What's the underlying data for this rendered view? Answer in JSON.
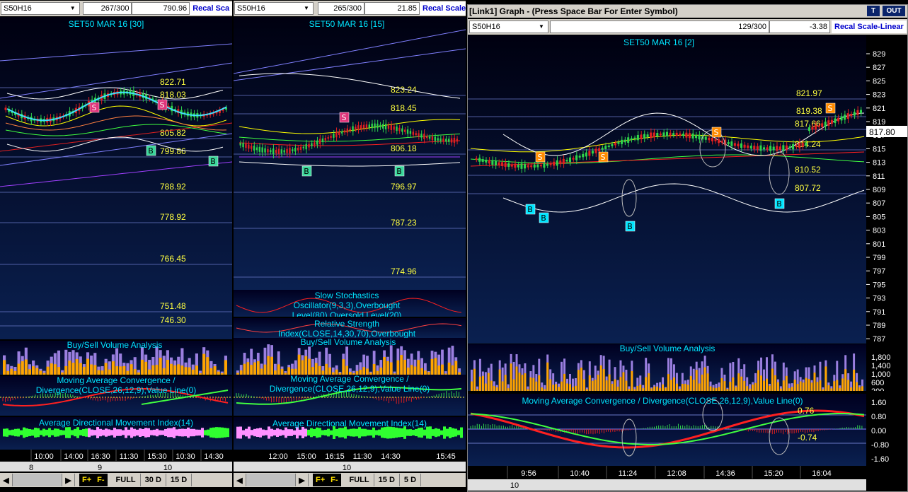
{
  "charts": [
    {
      "symbol": "S50H16",
      "count": "267/300",
      "value": "790.96",
      "recal": "Recal Sca",
      "title": "SET50 MAR 16  [30]",
      "hlines": [
        "822.71",
        "818.03",
        "805.82",
        "799.86",
        "788.92",
        "778.92",
        "766.45",
        "751.48",
        "746.30"
      ],
      "buy_sell": "Buy/Sell Volume Analysis",
      "macd": "Moving Average Convergence / Divergence(CLOSE,26,12,9),Value Line(0)",
      "adx": "Average Directional Movement Index(14)",
      "times": [
        "10:00",
        "14:00",
        "16:30",
        "11:30",
        "15:30",
        "10:30",
        "14:30"
      ],
      "days": [
        "8",
        "9",
        "10"
      ],
      "buttons": [
        "F+",
        "F-",
        "FULL",
        "30 D",
        "15 D"
      ]
    },
    {
      "symbol": "S50H16",
      "count": "265/300",
      "value": "21.85",
      "recal": "Recal Scale",
      "title": "SET50 MAR 16  [15]",
      "hlines": [
        "823.24",
        "818.45",
        "806.18",
        "796.97",
        "787.23",
        "774.96"
      ],
      "stoch": "Slow Stochastics Oscillator(9,3,3),Overbought Level(80),Oversold Level(20)",
      "rsi": "Relative Strength Index(CLOSE,14,30,70),Overbought Level(70),Oversold Level(30)",
      "buy_sell": "Buy/Sell Volume Analysis",
      "macd": "Moving Average Convergence / Divergence(CLOSE,26,12,9),Value Line(0)",
      "adx": "Average Directional Movement Index(14)",
      "times": [
        "12:00",
        "15:00",
        "16:15",
        "11:30",
        "14:30",
        "15:45"
      ],
      "days": [
        "10"
      ],
      "buttons": [
        "F+",
        "F-",
        "FULL",
        "15 D",
        "5 D"
      ]
    },
    {
      "window_title": "[Link1] Graph  - (Press Space Bar For Enter Symbol)",
      "t_btn": "T",
      "out_btn": "OUT",
      "symbol": "S50H16",
      "count": "129/300",
      "value": "-3.38",
      "recal": "Recal Scale-Linear",
      "title": "SET50 MAR 16  [2]",
      "hlines": [
        "821.97",
        "819.38",
        "817.66",
        "814.24",
        "810.52",
        "807.72"
      ],
      "last_price": "817.80",
      "yaxis": [
        "829",
        "827",
        "825",
        "823",
        "821",
        "819",
        "817",
        "815",
        "813",
        "811",
        "809",
        "807",
        "805",
        "803",
        "801",
        "799",
        "797",
        "795",
        "793",
        "791",
        "789",
        "787"
      ],
      "buy_sell": "Buy/Sell Volume Analysis",
      "vol_axis": [
        "1,800",
        "1,400",
        "1,000",
        "600",
        "200"
      ],
      "macd": "Moving Average Convergence / Divergence(CLOSE,26,12,9),Value Line(0)",
      "macd_axis": [
        "1.60",
        "0.80",
        "0.00",
        "-0.80",
        "-1.60"
      ],
      "macd_labels": [
        "0.76",
        "-0.74"
      ],
      "times": [
        "9:56",
        "10:40",
        "11:24",
        "12:08",
        "14:36",
        "15:20",
        "16:04"
      ],
      "days": [
        "10"
      ]
    }
  ],
  "colors": {
    "buy_signal": "#3ad79b",
    "sell_signal": "#e0357b",
    "sell_orange": "#ff8c00",
    "buy_cyan": "#00e5ff"
  }
}
